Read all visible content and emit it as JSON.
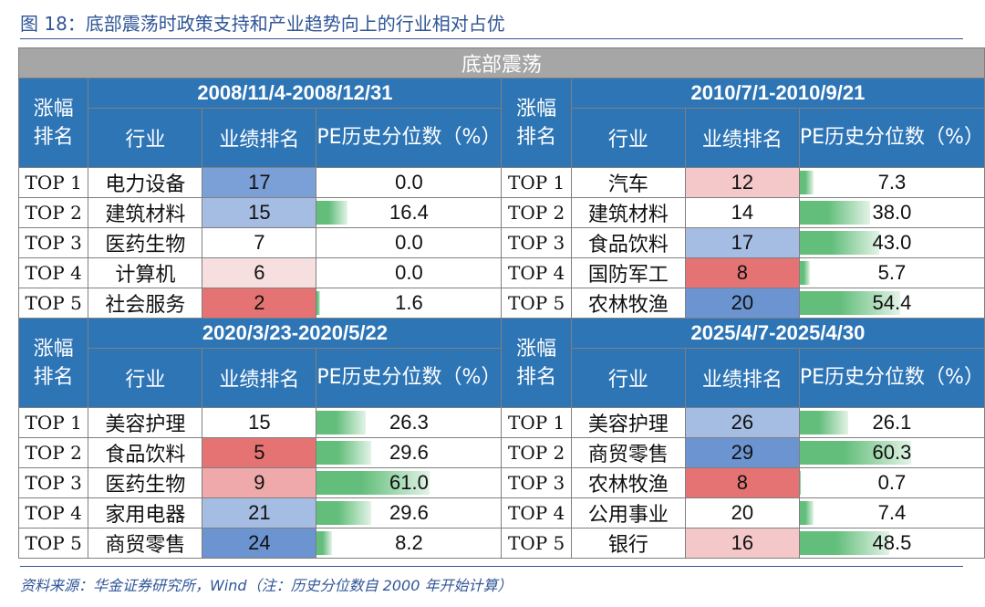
{
  "figure_title": "图 18：底部震荡时政策支持和产业趋势向上的行业相对占优",
  "banner": "底部震荡",
  "headers": {
    "rank_col": "涨幅排名",
    "industry": "行业",
    "performance_rank": "业绩排名",
    "pe_percentile": "PE历史分位数（%）"
  },
  "blocks": [
    {
      "range": "2008/11/4-2008/12/31",
      "rows": [
        {
          "top": "TOP 1",
          "industry": "电力设备",
          "rank": "17",
          "rank_color": "#7b9fd7",
          "pe": "0.0",
          "pe_value": 0.0
        },
        {
          "top": "TOP 2",
          "industry": "建筑材料",
          "rank": "15",
          "rank_color": "#a6bde3",
          "pe": "16.4",
          "pe_value": 16.4
        },
        {
          "top": "TOP 3",
          "industry": "医药生物",
          "rank": "7",
          "rank_color": "#ffffff",
          "pe": "0.0",
          "pe_value": 0.0
        },
        {
          "top": "TOP 4",
          "industry": "计算机",
          "rank": "6",
          "rank_color": "#f7dfe0",
          "pe": "0.0",
          "pe_value": 0.0
        },
        {
          "top": "TOP 5",
          "industry": "社会服务",
          "rank": "2",
          "rank_color": "#e57373",
          "pe": "1.6",
          "pe_value": 1.6
        }
      ]
    },
    {
      "range": "2010/7/1-2010/9/21",
      "rows": [
        {
          "top": "TOP 1",
          "industry": "汽车",
          "rank": "12",
          "rank_color": "#f4c7c8",
          "pe": "7.3",
          "pe_value": 7.3
        },
        {
          "top": "TOP 2",
          "industry": "建筑材料",
          "rank": "14",
          "rank_color": "#ffffff",
          "pe": "38.0",
          "pe_value": 38.0
        },
        {
          "top": "TOP 3",
          "industry": "食品饮料",
          "rank": "17",
          "rank_color": "#a6bde3",
          "pe": "43.0",
          "pe_value": 43.0
        },
        {
          "top": "TOP 4",
          "industry": "国防军工",
          "rank": "8",
          "rank_color": "#e57373",
          "pe": "5.7",
          "pe_value": 5.7
        },
        {
          "top": "TOP 5",
          "industry": "农林牧渔",
          "rank": "20",
          "rank_color": "#6c94d1",
          "pe": "54.4",
          "pe_value": 54.4
        }
      ]
    },
    {
      "range": "2020/3/23-2020/5/22",
      "rows": [
        {
          "top": "TOP 1",
          "industry": "美容护理",
          "rank": "15",
          "rank_color": "#ffffff",
          "pe": "26.3",
          "pe_value": 26.3
        },
        {
          "top": "TOP 2",
          "industry": "食品饮料",
          "rank": "5",
          "rank_color": "#e57373",
          "pe": "29.6",
          "pe_value": 29.6
        },
        {
          "top": "TOP 3",
          "industry": "医药生物",
          "rank": "9",
          "rank_color": "#f0a9ab",
          "pe": "61.0",
          "pe_value": 61.0
        },
        {
          "top": "TOP 4",
          "industry": "家用电器",
          "rank": "21",
          "rank_color": "#a6bde3",
          "pe": "29.6",
          "pe_value": 29.6
        },
        {
          "top": "TOP 5",
          "industry": "商贸零售",
          "rank": "24",
          "rank_color": "#6c94d1",
          "pe": "8.2",
          "pe_value": 8.2
        }
      ]
    },
    {
      "range": "2025/4/7-2025/4/30",
      "rows": [
        {
          "top": "TOP 1",
          "industry": "美容护理",
          "rank": "26",
          "rank_color": "#a6bde3",
          "pe": "26.1",
          "pe_value": 26.1
        },
        {
          "top": "TOP 2",
          "industry": "商贸零售",
          "rank": "29",
          "rank_color": "#6c94d1",
          "pe": "60.3",
          "pe_value": 60.3
        },
        {
          "top": "TOP 3",
          "industry": "农林牧渔",
          "rank": "8",
          "rank_color": "#e57373",
          "pe": "0.7",
          "pe_value": 0.7
        },
        {
          "top": "TOP 4",
          "industry": "公用事业",
          "rank": "20",
          "rank_color": "#ffffff",
          "pe": "7.4",
          "pe_value": 7.4
        },
        {
          "top": "TOP 5",
          "industry": "银行",
          "rank": "16",
          "rank_color": "#f4c7c8",
          "pe": "48.5",
          "pe_value": 48.5
        }
      ]
    }
  ],
  "source_note": "资料来源：华金证券研究所，Wind（注：历史分位数自 2000 年开始计算）",
  "colors": {
    "header_blue": "#2e75b6",
    "banner_gray": "#a6a6a6",
    "title_blue": "#2f5597",
    "pe_bar_green": "#63be7b"
  }
}
